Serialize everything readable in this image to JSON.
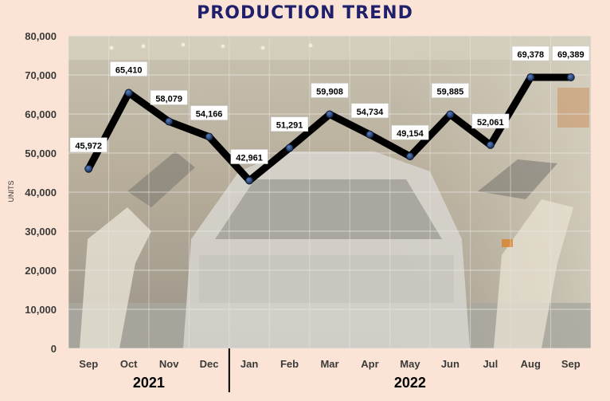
{
  "chart_data": {
    "type": "line",
    "title": "PRODUCTION TREND",
    "ylabel": "UNITS",
    "xlabel": "",
    "categories": [
      "Sep",
      "Oct",
      "Nov",
      "Dec",
      "Jan",
      "Feb",
      "Mar",
      "Apr",
      "May",
      "Jun",
      "Jul",
      "Aug",
      "Sep"
    ],
    "category_groups": [
      {
        "label": "2021",
        "categories": [
          "Sep",
          "Oct",
          "Nov",
          "Dec"
        ]
      },
      {
        "label": "2022",
        "categories": [
          "Jan",
          "Feb",
          "Mar",
          "Apr",
          "May",
          "Jun",
          "Jul",
          "Aug",
          "Sep"
        ]
      }
    ],
    "series": [
      {
        "values": [
          45972,
          65410,
          58079,
          54166,
          42961,
          51291,
          59908,
          54734,
          49154,
          59885,
          52061,
          69378,
          69389
        ]
      }
    ],
    "data_labels": [
      "45,972",
      "65,410",
      "58,079",
      "54,166",
      "42,961",
      "51,291",
      "59,908",
      "54,734",
      "49,154",
      "59,885",
      "52,061",
      "69,378",
      "69,389"
    ],
    "ylim": [
      0,
      80000
    ],
    "yticks": [
      0,
      10000,
      20000,
      30000,
      40000,
      50000,
      60000,
      70000,
      80000
    ],
    "ytick_labels": [
      "0",
      "10,000",
      "20,000",
      "30,000",
      "40,000",
      "50,000",
      "60,000",
      "70,000",
      "80,000"
    ],
    "grid": true,
    "legend": "none",
    "line_color": "#000000",
    "marker_color": "#1f3864",
    "title_color": "#1f1f6b",
    "background_color": "#fbe4d5"
  }
}
